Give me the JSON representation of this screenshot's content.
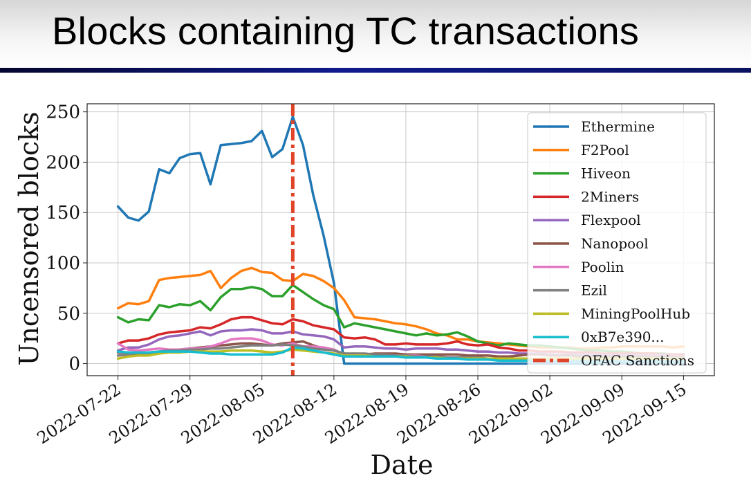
{
  "slide": {
    "title": "Blocks containing TC transactions"
  },
  "chart_data": {
    "type": "line",
    "xlabel": "Date",
    "ylabel": "Uncensored blocks",
    "ylim": [
      -12,
      258
    ],
    "xlim": [
      "2022-07-19",
      "2022-09-18"
    ],
    "yticks": [
      0,
      50,
      100,
      150,
      200,
      250
    ],
    "xticks": [
      "2022-07-22",
      "2022-07-29",
      "2022-08-05",
      "2022-08-12",
      "2022-08-19",
      "2022-08-26",
      "2022-09-02",
      "2022-09-09",
      "2022-09-15"
    ],
    "grid": true,
    "legend_position": "upper-right",
    "x": [
      "2022-07-22",
      "2022-07-23",
      "2022-07-24",
      "2022-07-25",
      "2022-07-26",
      "2022-07-27",
      "2022-07-28",
      "2022-07-29",
      "2022-07-30",
      "2022-07-31",
      "2022-08-01",
      "2022-08-02",
      "2022-08-03",
      "2022-08-04",
      "2022-08-05",
      "2022-08-06",
      "2022-08-07",
      "2022-08-08",
      "2022-08-09",
      "2022-08-10",
      "2022-08-11",
      "2022-08-12",
      "2022-08-13",
      "2022-08-14",
      "2022-08-15",
      "2022-08-16",
      "2022-08-17",
      "2022-08-18",
      "2022-08-19",
      "2022-08-20",
      "2022-08-21",
      "2022-08-22",
      "2022-08-23",
      "2022-08-24",
      "2022-08-25",
      "2022-08-26",
      "2022-08-27",
      "2022-08-28",
      "2022-08-29",
      "2022-08-30",
      "2022-08-31",
      "2022-09-01",
      "2022-09-02",
      "2022-09-03",
      "2022-09-04",
      "2022-09-05",
      "2022-09-06",
      "2022-09-07",
      "2022-09-08",
      "2022-09-09",
      "2022-09-10",
      "2022-09-11",
      "2022-09-12",
      "2022-09-13",
      "2022-09-14",
      "2022-09-15"
    ],
    "series": [
      {
        "name": "Ethermine",
        "color": "#1f77b4",
        "values": [
          156,
          145,
          142,
          151,
          193,
          189,
          204,
          208,
          209,
          178,
          217,
          218,
          219,
          221,
          231,
          205,
          213,
          245,
          217,
          167,
          127,
          80,
          0,
          0,
          0,
          0,
          0,
          0,
          0,
          0,
          0,
          0,
          0,
          0,
          0,
          0,
          0,
          0,
          0,
          0,
          0,
          0,
          0,
          0,
          0,
          0,
          0,
          0,
          0,
          0,
          0,
          0,
          0,
          0,
          0,
          0
        ]
      },
      {
        "name": "F2Pool",
        "color": "#ff7f0e",
        "values": [
          55,
          60,
          59,
          62,
          83,
          85,
          86,
          87,
          88,
          92,
          75,
          85,
          92,
          95,
          91,
          90,
          83,
          82,
          89,
          87,
          82,
          75,
          63,
          46,
          45,
          44,
          42,
          40,
          39,
          37,
          34,
          30,
          28,
          24,
          24,
          22,
          21,
          20,
          19,
          18,
          17,
          16,
          16,
          16,
          16,
          15,
          15,
          16,
          16,
          17,
          17,
          17,
          17,
          17,
          16,
          17
        ]
      },
      {
        "name": "Hiveon",
        "color": "#2ca02c",
        "values": [
          46,
          41,
          44,
          43,
          58,
          56,
          59,
          58,
          62,
          53,
          66,
          74,
          74,
          76,
          74,
          67,
          67,
          78,
          71,
          64,
          58,
          54,
          36,
          40,
          38,
          36,
          34,
          32,
          30,
          28,
          30,
          28,
          29,
          31,
          27,
          22,
          20,
          18,
          20,
          19,
          18,
          18,
          17,
          16,
          15,
          14,
          13,
          13,
          12,
          12,
          11,
          10,
          10,
          10,
          9,
          9
        ]
      },
      {
        "name": "2Miners",
        "color": "#d62728",
        "values": [
          20,
          23,
          23,
          25,
          29,
          31,
          32,
          33,
          36,
          35,
          39,
          44,
          46,
          46,
          43,
          40,
          39,
          44,
          42,
          38,
          36,
          34,
          26,
          25,
          26,
          24,
          19,
          19,
          20,
          19,
          19,
          19,
          20,
          22,
          19,
          18,
          19,
          16,
          15,
          13,
          13,
          12,
          12,
          12,
          11,
          11,
          11,
          10,
          10,
          10,
          10,
          10,
          10,
          9,
          9,
          9
        ]
      },
      {
        "name": "Flexpool",
        "color": "#9467bd",
        "values": [
          13,
          16,
          16,
          19,
          24,
          27,
          28,
          30,
          32,
          28,
          32,
          33,
          33,
          34,
          33,
          30,
          30,
          32,
          29,
          28,
          27,
          24,
          16,
          17,
          17,
          16,
          15,
          15,
          14,
          15,
          15,
          15,
          14,
          14,
          13,
          12,
          12,
          11,
          11,
          10,
          10,
          10,
          9,
          9,
          9,
          9,
          9,
          8,
          8,
          8,
          8,
          8,
          8,
          8,
          7,
          7
        ]
      },
      {
        "name": "Nanopool",
        "color": "#8c564b",
        "values": [
          11,
          11,
          10,
          11,
          12,
          12,
          14,
          15,
          16,
          17,
          18,
          19,
          20,
          20,
          19,
          18,
          20,
          21,
          22,
          18,
          15,
          13,
          10,
          9,
          9,
          10,
          10,
          10,
          9,
          9,
          9,
          9,
          9,
          9,
          8,
          8,
          8,
          7,
          7,
          8,
          9,
          9,
          8,
          8,
          8,
          7,
          7,
          7,
          7,
          7,
          7,
          7,
          7,
          6,
          6,
          6
        ]
      },
      {
        "name": "Poolin",
        "color": "#e377c2",
        "values": [
          20,
          14,
          13,
          14,
          15,
          14,
          14,
          15,
          15,
          17,
          20,
          24,
          25,
          25,
          23,
          19,
          18,
          20,
          17,
          17,
          16,
          14,
          9,
          10,
          9,
          9,
          8,
          8,
          8,
          8,
          7,
          7,
          6,
          6,
          5,
          5,
          4,
          4,
          4,
          4,
          4,
          3,
          3,
          3,
          3,
          3,
          3,
          3,
          3,
          3,
          3,
          3,
          3,
          3,
          3,
          3
        ]
      },
      {
        "name": "Ezil",
        "color": "#7f7f7f",
        "values": [
          8,
          9,
          9,
          10,
          12,
          13,
          13,
          14,
          14,
          15,
          15,
          16,
          17,
          18,
          18,
          18,
          19,
          18,
          17,
          15,
          14,
          13,
          10,
          10,
          10,
          9,
          9,
          8,
          8,
          7,
          7,
          7,
          6,
          6,
          6,
          6,
          5,
          5,
          5,
          5,
          5,
          5,
          4,
          4,
          4,
          4,
          4,
          4,
          4,
          4,
          4,
          4,
          4,
          4,
          4,
          4
        ]
      },
      {
        "name": "MiningPoolHub",
        "color": "#bcbd22",
        "values": [
          5,
          7,
          8,
          8,
          10,
          11,
          11,
          12,
          12,
          12,
          12,
          13,
          13,
          13,
          12,
          11,
          12,
          14,
          13,
          12,
          11,
          10,
          8,
          8,
          8,
          7,
          7,
          7,
          7,
          6,
          6,
          6,
          5,
          5,
          5,
          5,
          5,
          5,
          5,
          5,
          5,
          5,
          5,
          5,
          5,
          5,
          5,
          5,
          5,
          5,
          5,
          5,
          5,
          5,
          5,
          5
        ]
      },
      {
        "name": "0xB7e390...",
        "color": "#17becf",
        "values": [
          12,
          11,
          11,
          11,
          12,
          12,
          12,
          12,
          11,
          10,
          10,
          9,
          9,
          9,
          9,
          9,
          11,
          16,
          15,
          13,
          11,
          9,
          7,
          7,
          7,
          7,
          7,
          7,
          6,
          6,
          6,
          5,
          5,
          5,
          4,
          4,
          4,
          3,
          3,
          3,
          3,
          3,
          2,
          2,
          2,
          2,
          2,
          2,
          2,
          2,
          2,
          2,
          2,
          2,
          2,
          2
        ]
      }
    ],
    "annotation": {
      "name": "OFAC Sanctions",
      "date": "2022-08-08",
      "color": "#e0452a"
    }
  }
}
